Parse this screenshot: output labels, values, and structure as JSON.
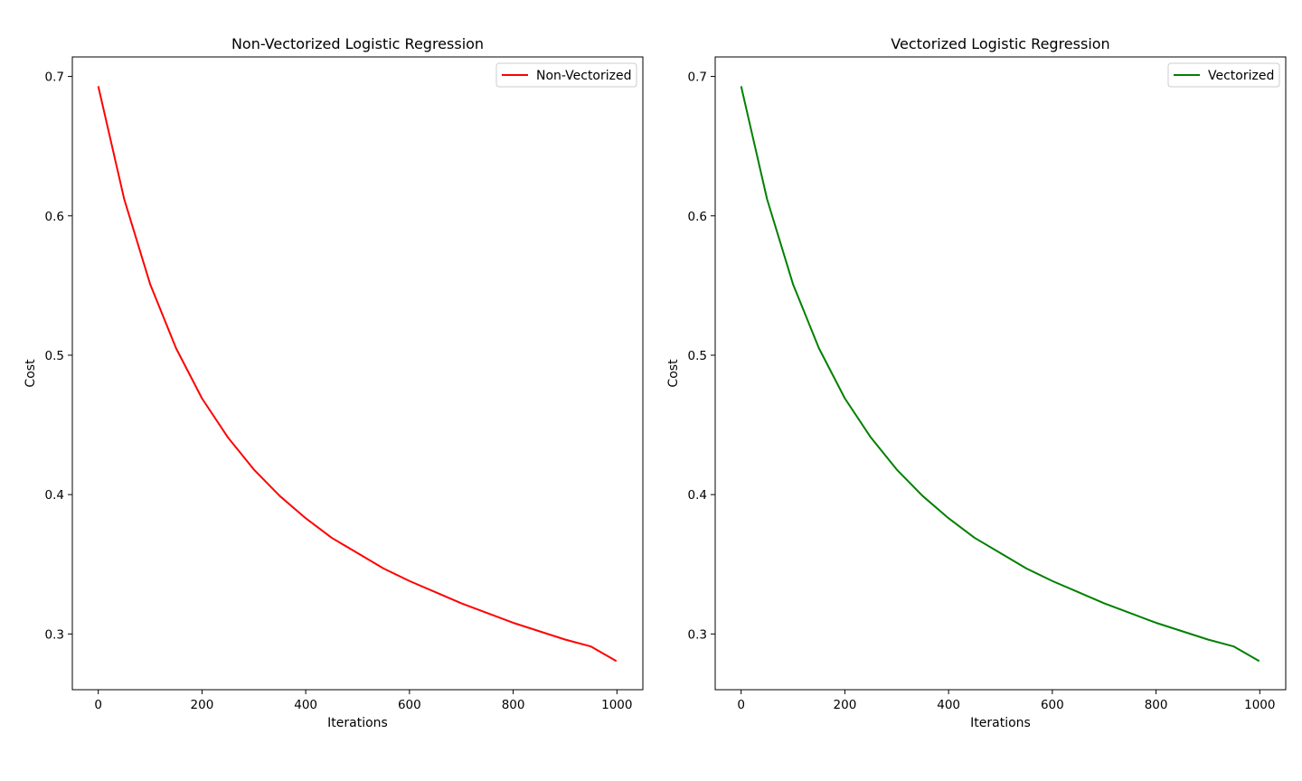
{
  "chart_data": [
    {
      "type": "line",
      "title": "Non-Vectorized Logistic Regression",
      "xlabel": "Iterations",
      "ylabel": "Cost",
      "xlim": [
        -50,
        1050
      ],
      "ylim": [
        0.26,
        0.714
      ],
      "xticks": [
        0,
        200,
        400,
        600,
        800,
        1000
      ],
      "yticks": [
        0.3,
        0.4,
        0.5,
        0.6,
        0.7
      ],
      "grid": false,
      "legend_position": "top-right",
      "series": [
        {
          "name": "Non-Vectorized",
          "color": "#ff0000",
          "x": [
            0,
            50,
            100,
            150,
            200,
            250,
            300,
            350,
            400,
            450,
            500,
            550,
            600,
            650,
            700,
            750,
            800,
            850,
            900,
            950,
            999
          ],
          "y": [
            0.693,
            0.612,
            0.551,
            0.505,
            0.469,
            0.441,
            0.418,
            0.399,
            0.383,
            0.369,
            0.358,
            0.347,
            0.338,
            0.33,
            0.322,
            0.315,
            0.308,
            0.302,
            0.296,
            0.291,
            0.2805
          ]
        }
      ]
    },
    {
      "type": "line",
      "title": "Vectorized Logistic Regression",
      "xlabel": "Iterations",
      "ylabel": "Cost",
      "xlim": [
        -50,
        1050
      ],
      "ylim": [
        0.26,
        0.714
      ],
      "xticks": [
        0,
        200,
        400,
        600,
        800,
        1000
      ],
      "yticks": [
        0.3,
        0.4,
        0.5,
        0.6,
        0.7
      ],
      "grid": false,
      "legend_position": "top-right",
      "series": [
        {
          "name": "Vectorized",
          "color": "#008000",
          "x": [
            0,
            50,
            100,
            150,
            200,
            250,
            300,
            350,
            400,
            450,
            500,
            550,
            600,
            650,
            700,
            750,
            800,
            850,
            900,
            950,
            999
          ],
          "y": [
            0.693,
            0.612,
            0.551,
            0.505,
            0.469,
            0.441,
            0.418,
            0.399,
            0.383,
            0.369,
            0.358,
            0.347,
            0.338,
            0.33,
            0.322,
            0.315,
            0.308,
            0.302,
            0.296,
            0.291,
            0.2805
          ]
        }
      ]
    }
  ]
}
